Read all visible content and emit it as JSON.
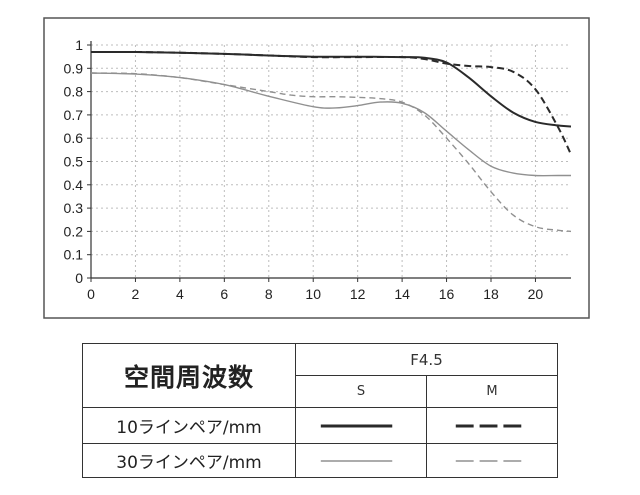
{
  "chart_data": {
    "type": "line",
    "xlim": [
      0,
      21.6
    ],
    "ylim": [
      0,
      1
    ],
    "x_ticks": [
      "0",
      "2",
      "4",
      "6",
      "8",
      "10",
      "12",
      "14",
      "16",
      "18",
      "20"
    ],
    "y_ticks": [
      "0",
      "0.1",
      "0.2",
      "0.3",
      "0.4",
      "0.5",
      "0.6",
      "0.7",
      "0.8",
      "0.9",
      "1"
    ],
    "grid": true,
    "series": [
      {
        "name": "10ラインペア/mm S",
        "color": "#2a2a2a",
        "style": "solid",
        "weight": "heavy",
        "points": [
          [
            0,
            0.97
          ],
          [
            2,
            0.97
          ],
          [
            4,
            0.967
          ],
          [
            6,
            0.962
          ],
          [
            8,
            0.955
          ],
          [
            10,
            0.95
          ],
          [
            12,
            0.95
          ],
          [
            14,
            0.948
          ],
          [
            15,
            0.945
          ],
          [
            16,
            0.925
          ],
          [
            17,
            0.86
          ],
          [
            18,
            0.78
          ],
          [
            19,
            0.71
          ],
          [
            20,
            0.67
          ],
          [
            21,
            0.655
          ],
          [
            21.6,
            0.65
          ]
        ]
      },
      {
        "name": "10ラインペア/mm M",
        "color": "#2a2a2a",
        "style": "dashed",
        "weight": "heavy",
        "points": [
          [
            0,
            0.97
          ],
          [
            2,
            0.97
          ],
          [
            4,
            0.967
          ],
          [
            6,
            0.962
          ],
          [
            8,
            0.955
          ],
          [
            10,
            0.948
          ],
          [
            12,
            0.948
          ],
          [
            14,
            0.948
          ],
          [
            15,
            0.94
          ],
          [
            16,
            0.92
          ],
          [
            17,
            0.91
          ],
          [
            18,
            0.905
          ],
          [
            19,
            0.885
          ],
          [
            20,
            0.81
          ],
          [
            21,
            0.65
          ],
          [
            21.6,
            0.53
          ]
        ]
      },
      {
        "name": "30ラインペア/mm S",
        "color": "#909090",
        "style": "solid",
        "weight": "light",
        "points": [
          [
            0,
            0.88
          ],
          [
            2,
            0.875
          ],
          [
            4,
            0.86
          ],
          [
            6,
            0.83
          ],
          [
            8,
            0.78
          ],
          [
            10,
            0.735
          ],
          [
            11,
            0.73
          ],
          [
            12,
            0.74
          ],
          [
            13,
            0.755
          ],
          [
            14,
            0.75
          ],
          [
            15,
            0.71
          ],
          [
            16,
            0.63
          ],
          [
            17,
            0.55
          ],
          [
            18,
            0.48
          ],
          [
            19,
            0.45
          ],
          [
            20,
            0.44
          ],
          [
            21,
            0.44
          ],
          [
            21.6,
            0.44
          ]
        ]
      },
      {
        "name": "30ラインペア/mm M",
        "color": "#909090",
        "style": "dashed",
        "weight": "light",
        "points": [
          [
            0,
            0.88
          ],
          [
            2,
            0.877
          ],
          [
            4,
            0.86
          ],
          [
            6,
            0.83
          ],
          [
            8,
            0.8
          ],
          [
            9,
            0.785
          ],
          [
            10,
            0.778
          ],
          [
            11,
            0.778
          ],
          [
            12,
            0.775
          ],
          [
            13,
            0.77
          ],
          [
            14,
            0.755
          ],
          [
            15,
            0.7
          ],
          [
            16,
            0.6
          ],
          [
            17,
            0.49
          ],
          [
            18,
            0.37
          ],
          [
            19,
            0.27
          ],
          [
            20,
            0.22
          ],
          [
            21,
            0.205
          ],
          [
            21.6,
            0.2
          ]
        ]
      }
    ]
  },
  "legend": {
    "heading": "空間周波数",
    "condition": "F4.5",
    "col_s": "S",
    "col_m": "M",
    "row1": "10ラインペア/mm",
    "row2": "30ラインペア/mm"
  }
}
